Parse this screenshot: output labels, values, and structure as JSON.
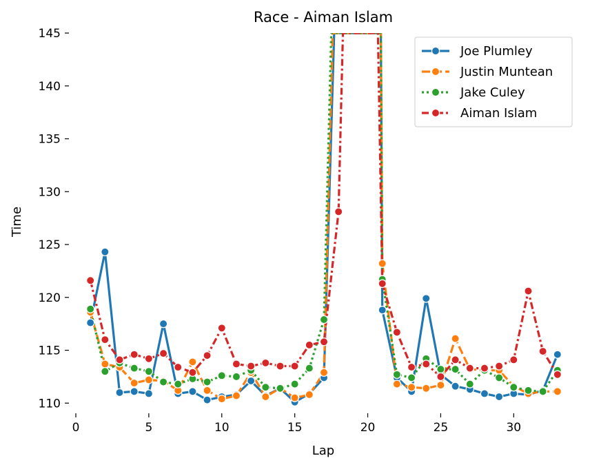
{
  "chart_data": {
    "type": "line",
    "title": "Race - Aiman Islam",
    "xlabel": "Lap",
    "ylabel": "Time",
    "xlim": [
      0,
      34
    ],
    "ylim": [
      109.3,
      145
    ],
    "xticks": [
      0,
      5,
      10,
      15,
      20,
      25,
      30
    ],
    "yticks": [
      110,
      115,
      120,
      125,
      130,
      135,
      140,
      145
    ],
    "grid": false,
    "legend": "top-right",
    "series": [
      {
        "name": "Joe Plumley",
        "color": "#1f77b4",
        "dash": "solid",
        "points": [
          [
            1,
            117.6
          ],
          [
            2,
            124.3
          ],
          [
            3,
            111.0
          ],
          [
            4,
            111.1
          ],
          [
            5,
            110.9
          ],
          [
            6,
            117.5
          ],
          [
            7,
            110.9
          ],
          [
            8,
            111.1
          ],
          [
            9,
            110.3
          ],
          [
            10,
            110.6
          ],
          [
            11,
            110.8
          ],
          [
            12,
            112.1
          ],
          [
            13,
            110.7
          ],
          [
            14,
            111.4
          ],
          [
            15,
            110.1
          ],
          [
            16,
            110.9
          ],
          [
            17,
            112.4
          ],
          [
            17.7,
            145
          ],
          [
            20.9,
            145
          ],
          [
            21,
            118.8
          ],
          [
            22,
            112.4
          ],
          [
            23,
            111.1
          ],
          [
            24,
            119.9
          ],
          [
            25,
            112.7
          ],
          [
            26,
            111.6
          ],
          [
            27,
            111.3
          ],
          [
            28,
            110.9
          ],
          [
            29,
            110.6
          ],
          [
            30,
            110.9
          ],
          [
            31,
            110.8
          ],
          [
            32,
            111.2
          ],
          [
            33,
            114.6
          ]
        ]
      },
      {
        "name": "Justin Muntean",
        "color": "#ff7f0e",
        "dash": "dashed",
        "points": [
          [
            1,
            118.6
          ],
          [
            2,
            113.7
          ],
          [
            3,
            113.4
          ],
          [
            4,
            111.9
          ],
          [
            5,
            112.2
          ],
          [
            6,
            112.1
          ],
          [
            7,
            111.2
          ],
          [
            8,
            113.9
          ],
          [
            9,
            111.2
          ],
          [
            10,
            110.4
          ],
          [
            11,
            110.7
          ],
          [
            12,
            112.9
          ],
          [
            13,
            110.6
          ],
          [
            14,
            111.4
          ],
          [
            15,
            110.5
          ],
          [
            16,
            110.8
          ],
          [
            17,
            112.9
          ],
          [
            17.6,
            145
          ],
          [
            20.9,
            145
          ],
          [
            21,
            123.2
          ],
          [
            22,
            111.8
          ],
          [
            23,
            111.5
          ],
          [
            24,
            111.4
          ],
          [
            25,
            111.7
          ],
          [
            26,
            116.1
          ],
          [
            27,
            113.2
          ],
          [
            28,
            113.1
          ],
          [
            29,
            113.1
          ],
          [
            30,
            111.6
          ],
          [
            31,
            110.9
          ],
          [
            32,
            111.1
          ],
          [
            33,
            111.1
          ]
        ]
      },
      {
        "name": "Jake Culey",
        "color": "#2ca02c",
        "dash": "dotted",
        "points": [
          [
            1,
            118.9
          ],
          [
            2,
            113.0
          ],
          [
            3,
            113.8
          ],
          [
            4,
            113.3
          ],
          [
            5,
            113.0
          ],
          [
            6,
            112.0
          ],
          [
            7,
            111.8
          ],
          [
            8,
            112.3
          ],
          [
            9,
            112.0
          ],
          [
            10,
            112.6
          ],
          [
            11,
            112.5
          ],
          [
            12,
            113.1
          ],
          [
            13,
            111.5
          ],
          [
            14,
            111.4
          ],
          [
            15,
            111.8
          ],
          [
            16,
            113.3
          ],
          [
            17,
            117.9
          ],
          [
            17.5,
            145
          ],
          [
            20.9,
            145
          ],
          [
            21,
            121.7
          ],
          [
            22,
            112.7
          ],
          [
            23,
            112.4
          ],
          [
            24,
            114.2
          ],
          [
            25,
            113.2
          ],
          [
            26,
            113.2
          ],
          [
            27,
            111.8
          ],
          [
            28,
            113.1
          ],
          [
            29,
            112.4
          ],
          [
            30,
            111.5
          ],
          [
            31,
            111.2
          ],
          [
            32,
            111.1
          ],
          [
            33,
            113.1
          ]
        ]
      },
      {
        "name": "Aiman Islam",
        "color": "#d62728",
        "dash": "dashdot",
        "points": [
          [
            1,
            121.6
          ],
          [
            2,
            116.0
          ],
          [
            3,
            114.1
          ],
          [
            4,
            114.6
          ],
          [
            5,
            114.2
          ],
          [
            6,
            114.7
          ],
          [
            7,
            113.4
          ],
          [
            8,
            112.9
          ],
          [
            9,
            114.5
          ],
          [
            10,
            117.1
          ],
          [
            11,
            113.7
          ],
          [
            12,
            113.5
          ],
          [
            13,
            113.8
          ],
          [
            14,
            113.5
          ],
          [
            15,
            113.5
          ],
          [
            16,
            115.5
          ],
          [
            17,
            115.8
          ],
          [
            18,
            128.1
          ],
          [
            18.3,
            145
          ],
          [
            20.7,
            145
          ],
          [
            21,
            121.3
          ],
          [
            22,
            116.7
          ],
          [
            23,
            113.4
          ],
          [
            24,
            113.7
          ],
          [
            25,
            112.5
          ],
          [
            26,
            114.1
          ],
          [
            27,
            113.3
          ],
          [
            28,
            113.3
          ],
          [
            29,
            113.5
          ],
          [
            30,
            114.1
          ],
          [
            31,
            120.6
          ],
          [
            32,
            114.9
          ],
          [
            33,
            112.7
          ]
        ]
      }
    ]
  }
}
